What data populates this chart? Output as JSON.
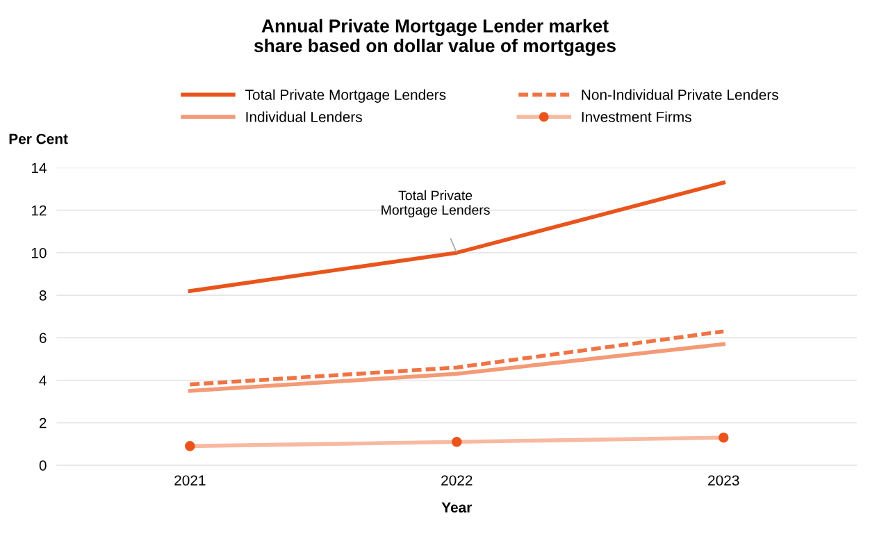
{
  "chart_data": {
    "type": "line",
    "title": "Annual Private Mortgage Lender market\nshare based on dollar value of mortgages",
    "categories": [
      "2021",
      "2022",
      "2023"
    ],
    "series": [
      {
        "name": "Total Private Mortgage Lenders",
        "color": "#e9541c",
        "values": [
          8.2,
          10.0,
          13.3
        ]
      },
      {
        "name": "Non-Individual Private Lenders",
        "color": "#ef7445",
        "line_style": "dashed",
        "values": [
          3.8,
          4.6,
          6.3
        ]
      },
      {
        "name": "Individual Lenders",
        "color": "#f39a76",
        "values": [
          3.5,
          4.3,
          5.7
        ]
      },
      {
        "name": "Investment Firms",
        "color": "#f8b9a1",
        "marker": "circle",
        "colors": [
          "#e9541c",
          "#e9541c",
          "#e9541c"
        ],
        "values": [
          0.9,
          1.1,
          1.3
        ]
      }
    ],
    "xlabel": "Year",
    "ylabel": "Per Cent",
    "ylim": [
      0,
      14
    ],
    "yticks": [
      0,
      2,
      4,
      6,
      8,
      10,
      12,
      14
    ],
    "grid": "y",
    "legend": "top",
    "marker": "none",
    "line_style": "solid",
    "annotations": [
      {
        "text": "Total Private\nMortgage Lenders",
        "x": "2022",
        "y": 10.0
      }
    ]
  }
}
